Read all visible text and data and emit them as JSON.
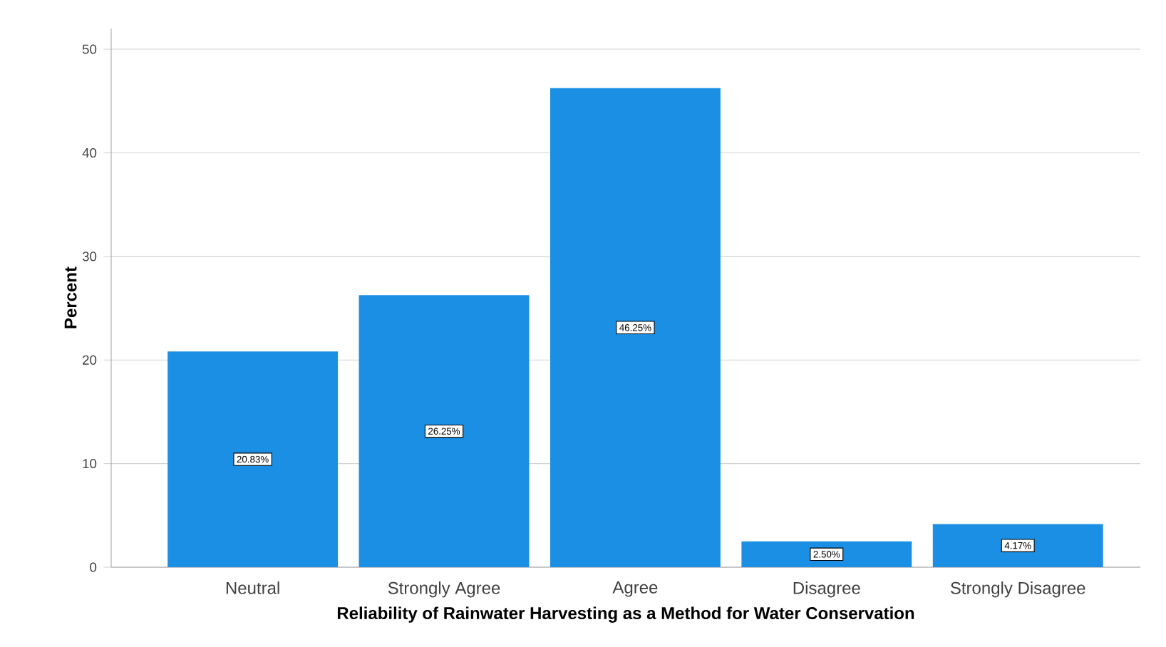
{
  "chart_data": {
    "type": "bar",
    "xlabel": "Reliability of Rainwater Harvesting as a Method for Water Conservation",
    "ylabel": "Percent",
    "categories": [
      "Neutral",
      "Strongly Agree",
      "Agree",
      "Disagree",
      "Strongly Disagree"
    ],
    "values": [
      20.83,
      26.25,
      46.25,
      2.5,
      4.17
    ],
    "value_labels": [
      "20.83%",
      "26.25%",
      "46.25%",
      "2.50%",
      "4.17%"
    ],
    "color": "#1a8fe3",
    "ylim": [
      0,
      52
    ],
    "yticks": [
      0,
      10,
      20,
      30,
      40,
      50
    ],
    "grid": "y"
  }
}
